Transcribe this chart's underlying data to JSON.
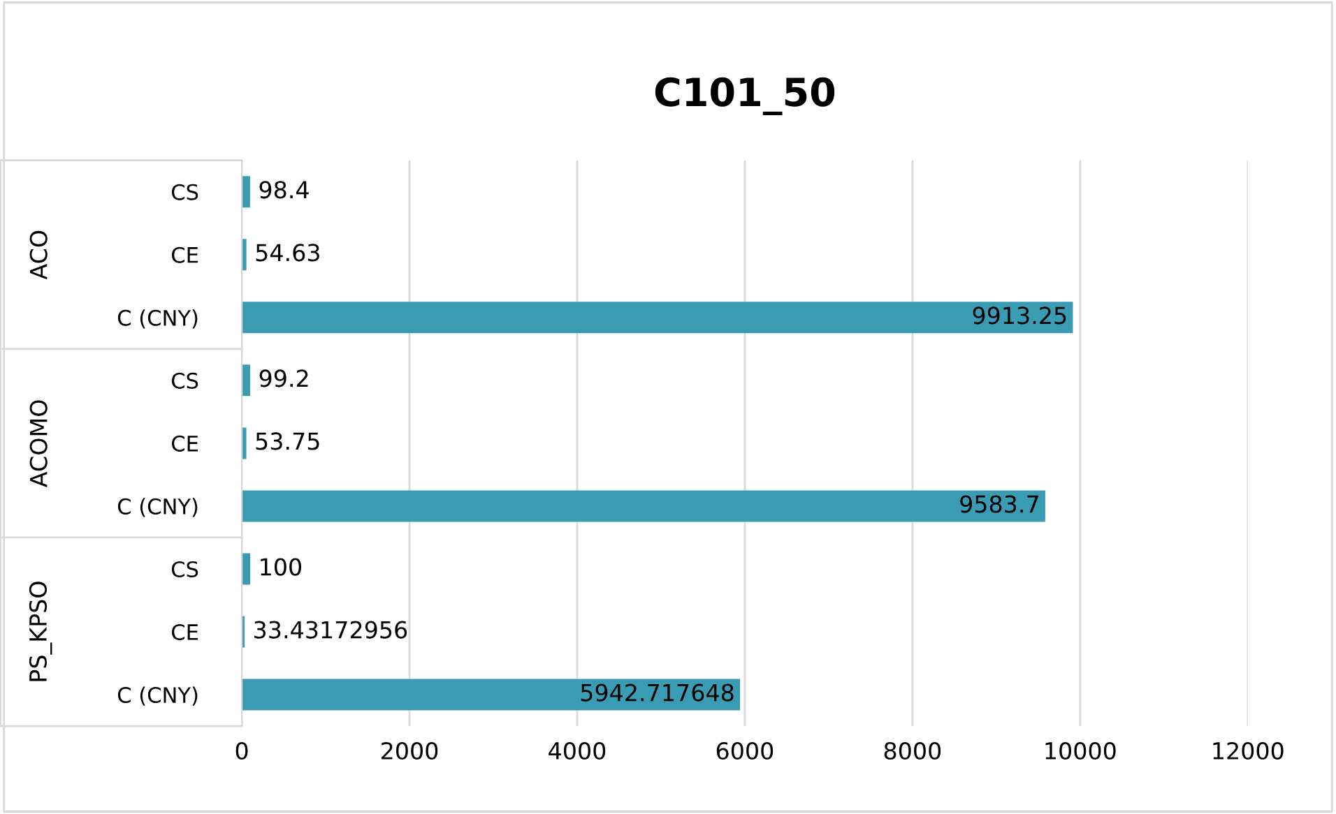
{
  "chart_data": {
    "type": "bar",
    "orientation": "horizontal",
    "title": "C101_50",
    "categories": [
      "CS",
      "CE",
      "C (CNY)",
      "CS",
      "CE",
      "C (CNY)",
      "CS",
      "CE",
      "C (CNY)"
    ],
    "values": [
      98.4,
      54.63,
      9913.25,
      99.2,
      53.75,
      9583.7,
      100,
      33.43172956,
      5942.717648
    ],
    "color": "#3a9cb3",
    "annotations": [
      "ACO",
      "ACOMO",
      "PS_KPSO"
    ],
    "xlim": [
      0,
      12000
    ],
    "xticks": [
      0,
      2000,
      4000,
      6000,
      8000,
      10000,
      12000
    ],
    "grid": "x",
    "data_labels": true,
    "legend": false
  }
}
